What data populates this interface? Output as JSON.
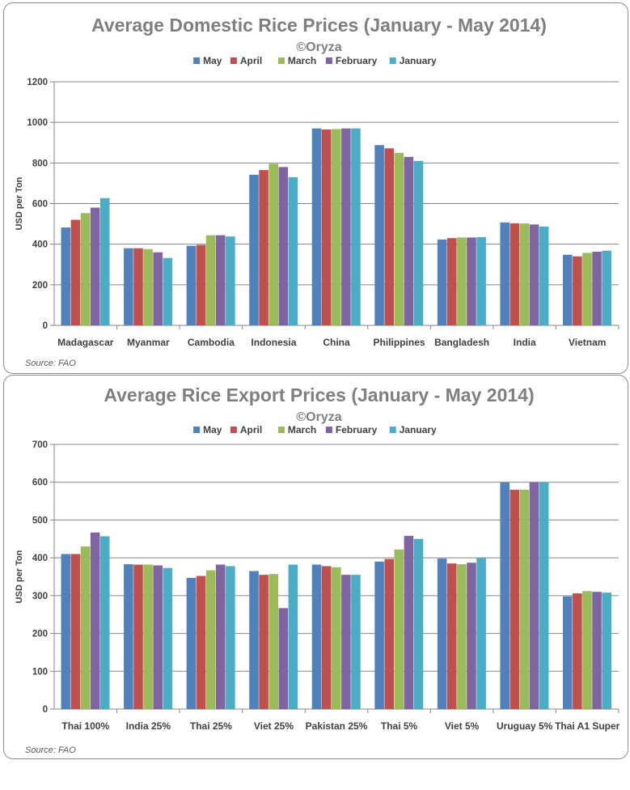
{
  "chart_data": [
    {
      "type": "bar",
      "title": "Average Domestic Rice Prices (January - May 2014)",
      "subtitle": "©Oryza",
      "ylabel": "USD per Ton",
      "xlabel": "",
      "ylim": [
        0,
        1200
      ],
      "yticks": [
        0,
        200,
        400,
        600,
        800,
        1000,
        1200
      ],
      "grid": true,
      "legend_position": "top",
      "source": "Source: FAO",
      "categories": [
        "Madagascar",
        "Myanmar",
        "Cambodia",
        "Indonesia",
        "China",
        "Philippines",
        "Bangladesh",
        "India",
        "Vietnam"
      ],
      "series": [
        {
          "name": "May",
          "color": "#4f81bd",
          "values": [
            482,
            380,
            392,
            742,
            970,
            888,
            423,
            507,
            348
          ]
        },
        {
          "name": "April",
          "color": "#c0504d",
          "values": [
            520,
            380,
            396,
            765,
            965,
            872,
            430,
            503,
            340
          ]
        },
        {
          "name": "March",
          "color": "#9bbb59",
          "values": [
            553,
            376,
            444,
            796,
            967,
            850,
            433,
            502,
            357
          ]
        },
        {
          "name": "February",
          "color": "#8064a2",
          "values": [
            580,
            360,
            444,
            780,
            970,
            830,
            433,
            497,
            363
          ]
        },
        {
          "name": "January",
          "color": "#4bacc6",
          "values": [
            627,
            332,
            438,
            730,
            970,
            810,
            435,
            487,
            368
          ]
        }
      ]
    },
    {
      "type": "bar",
      "title": "Average Rice Export Prices (January - May 2014)",
      "subtitle": "©Oryza",
      "ylabel": "USD per Ton",
      "xlabel": "",
      "ylim": [
        0,
        700
      ],
      "yticks": [
        0,
        100,
        200,
        300,
        400,
        500,
        600,
        700
      ],
      "grid": true,
      "legend_position": "top",
      "source": "Source: FAO",
      "categories": [
        "Thai 100%",
        "India 25%",
        "Thai 25%",
        "Viet 25%",
        "Pakistan 25%",
        "Thai 5%",
        "Viet 5%",
        "Uruguay 5%",
        "Thai A1 Super"
      ],
      "series": [
        {
          "name": "May",
          "color": "#4f81bd",
          "values": [
            410,
            383,
            347,
            365,
            382,
            390,
            398,
            600,
            298
          ]
        },
        {
          "name": "April",
          "color": "#c0504d",
          "values": [
            410,
            382,
            352,
            355,
            378,
            397,
            385,
            580,
            306
          ]
        },
        {
          "name": "March",
          "color": "#9bbb59",
          "values": [
            430,
            382,
            367,
            357,
            375,
            422,
            383,
            580,
            312
          ]
        },
        {
          "name": "February",
          "color": "#8064a2",
          "values": [
            467,
            380,
            382,
            267,
            355,
            458,
            387,
            600,
            310
          ]
        },
        {
          "name": "January",
          "color": "#4bacc6",
          "values": [
            457,
            373,
            378,
            382,
            355,
            450,
            400,
            600,
            308
          ]
        }
      ]
    }
  ]
}
